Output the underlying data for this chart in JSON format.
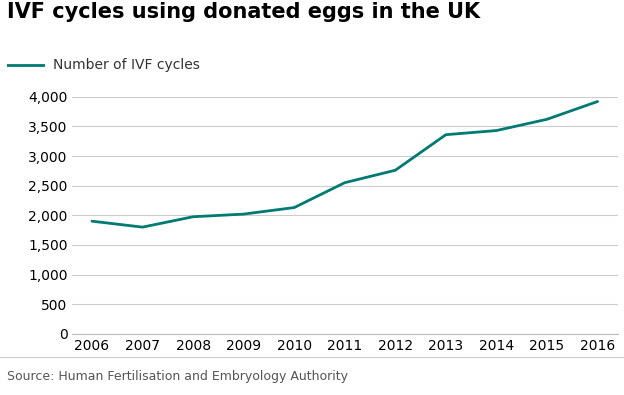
{
  "title": "IVF cycles using donated eggs in the UK",
  "legend_label": "Number of IVF cycles",
  "line_color": "#007A73",
  "line_width": 2.0,
  "years": [
    2006,
    2007,
    2008,
    2009,
    2010,
    2011,
    2012,
    2013,
    2014,
    2015,
    2016
  ],
  "values": [
    1900,
    1800,
    1975,
    2020,
    2130,
    2550,
    2760,
    3360,
    3430,
    3620,
    3920
  ],
  "ylim": [
    0,
    4000
  ],
  "yticks": [
    0,
    500,
    1000,
    1500,
    2000,
    2500,
    3000,
    3500,
    4000
  ],
  "xlim": [
    2006,
    2016
  ],
  "xticks": [
    2006,
    2007,
    2008,
    2009,
    2010,
    2011,
    2012,
    2013,
    2014,
    2015,
    2016
  ],
  "background_color": "#ffffff",
  "grid_color": "#cccccc",
  "source_text": "Source: Human Fertilisation and Embryology Authority",
  "bbc_bg_color": "#808080",
  "title_fontsize": 15,
  "tick_fontsize": 10,
  "legend_fontsize": 10,
  "source_fontsize": 9
}
